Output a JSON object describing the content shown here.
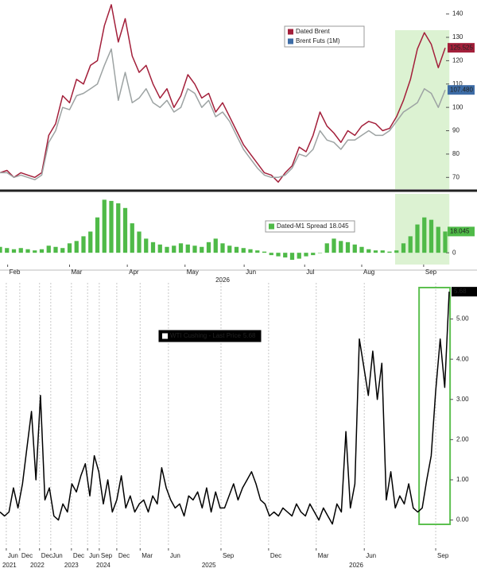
{
  "chart_data": [
    {
      "type": "line",
      "xlim": [
        0,
        64
      ],
      "ylim": [
        65,
        146
      ],
      "yticks": [
        70,
        80,
        90,
        100,
        110,
        120,
        130,
        140
      ],
      "highlight_x": [
        56.8,
        64.6
      ],
      "highlight_style": "fill",
      "highlight_color": "#dcf2d2",
      "series": [
        {
          "name": "Dated Brent",
          "color": "#a31f3a",
          "label_color": "#a31f3a",
          "last_label": "125.525",
          "values": [
            72,
            73,
            70,
            72,
            71,
            70,
            72,
            88,
            93,
            105,
            102,
            112,
            110,
            118,
            120,
            135,
            144,
            128,
            138,
            122,
            115,
            118,
            110,
            104,
            108,
            100,
            105,
            114,
            110,
            104,
            106,
            98,
            102,
            96,
            90,
            84,
            80,
            76,
            72,
            71,
            68,
            72,
            75,
            83,
            81,
            88,
            98,
            92,
            89,
            85,
            90,
            88,
            92,
            94,
            93,
            90,
            91,
            96,
            103,
            112,
            125,
            132,
            127,
            117,
            125.525
          ]
        },
        {
          "name": "Brent Futs (1M)",
          "color": "#9da3a3",
          "label_color": "#3d6ca6",
          "last_label": "107.480",
          "values": [
            72,
            72,
            70,
            71,
            70,
            69,
            71,
            85,
            90,
            100,
            99,
            105,
            106,
            108,
            110,
            118,
            125,
            103,
            115,
            102,
            104,
            108,
            102,
            100,
            103,
            98,
            100,
            108,
            106,
            100,
            103,
            96,
            98,
            94,
            88,
            82,
            78,
            74,
            71,
            70,
            70,
            71,
            74,
            80,
            79,
            82,
            90,
            86,
            85,
            82,
            86,
            86,
            88,
            90,
            88,
            88,
            90,
            94,
            98,
            100,
            102,
            108,
            106,
            100,
            107.48
          ]
        }
      ]
    },
    {
      "type": "bar",
      "xlim": [
        0,
        64
      ],
      "ylim": [
        -10,
        50
      ],
      "yticks": [
        0
      ],
      "xticks": [
        {
          "value": 1.1,
          "label": "Feb"
        },
        {
          "value": 10,
          "label": "Mar"
        },
        {
          "value": 18.3,
          "label": "Apr"
        },
        {
          "value": 26.6,
          "label": "May"
        },
        {
          "value": 35.1,
          "label": "Jun"
        },
        {
          "value": 43.8,
          "label": "Jul"
        },
        {
          "value": 52,
          "label": "Aug"
        },
        {
          "value": 60.9,
          "label": "Sep"
        }
      ],
      "x_label": "2026",
      "highlight_x": [
        56.8,
        64.6
      ],
      "highlight_style": "fill",
      "highlight_color": "#dcf2d2",
      "series": [
        {
          "name": "Dated-M1 Spread",
          "color": "#4fba48",
          "label_color": "#4fba48",
          "last_label": "18.045",
          "values": [
            5,
            4,
            3,
            4,
            3,
            2,
            3,
            6,
            5,
            4,
            8,
            10,
            14,
            18,
            30,
            45,
            44,
            42,
            38,
            25,
            18,
            12,
            9,
            7,
            5,
            6,
            8,
            7,
            6,
            5,
            9,
            12,
            8,
            6,
            5,
            4,
            3,
            2,
            1,
            -2,
            -3,
            -4,
            -6,
            -5,
            -3,
            -2,
            0,
            8,
            12,
            10,
            9,
            7,
            5,
            3,
            2,
            2,
            1,
            2,
            8,
            14,
            24,
            30,
            28,
            22,
            18.045
          ]
        }
      ]
    },
    {
      "type": "line",
      "xlim": [
        0,
        100
      ],
      "ylim": [
        -0.7,
        5.9
      ],
      "yticks": [
        {
          "value": 0,
          "label": "0.00"
        },
        {
          "value": 1,
          "label": "1.00"
        },
        {
          "value": 2,
          "label": "2.00"
        },
        {
          "value": 3,
          "label": "3.00"
        },
        {
          "value": 4,
          "label": "4.00"
        },
        {
          "value": 5,
          "label": "5.00"
        }
      ],
      "xticks": [
        {
          "value": 1.4,
          "label": "Jun"
        },
        {
          "value": 4.4,
          "label": "Dec"
        },
        {
          "value": 8.8,
          "label": "Dec"
        },
        {
          "value": 11.3,
          "label": "Jun"
        },
        {
          "value": 15.9,
          "label": "Dec"
        },
        {
          "value": 19.5,
          "label": "Jun"
        },
        {
          "value": 22.1,
          "label": "Sep"
        },
        {
          "value": 26,
          "label": "Dec"
        },
        {
          "value": 31.2,
          "label": "Mar"
        },
        {
          "value": 37.5,
          "label": "Jun"
        },
        {
          "value": 49.2,
          "label": "Sep"
        },
        {
          "value": 59.8,
          "label": "Dec"
        },
        {
          "value": 70.4,
          "label": "Mar"
        },
        {
          "value": 81.1,
          "label": "Jun"
        },
        {
          "value": 97,
          "label": "Sep"
        }
      ],
      "year_ticks": [
        {
          "value": 2.1,
          "label": "2021"
        },
        {
          "value": 8.3,
          "label": "2022"
        },
        {
          "value": 15.9,
          "label": "2023"
        },
        {
          "value": 23,
          "label": "2024"
        },
        {
          "value": 46.5,
          "label": "2025"
        },
        {
          "value": 79.3,
          "label": "2026"
        }
      ],
      "grid": true,
      "highlight_x": [
        93.3,
        100.2
      ],
      "highlight_style": "outline",
      "highlight_color": "#5cc04f",
      "series": [
        {
          "name": "WTI Cushing - Last Price",
          "color": "#000000",
          "label_color": "#000000",
          "last_label": "5.68",
          "values": [
            0.2,
            0.1,
            0.2,
            0.8,
            0.3,
            0.9,
            1.8,
            2.7,
            1.0,
            3.1,
            0.5,
            0.8,
            0.1,
            0.0,
            0.4,
            0.2,
            0.9,
            0.7,
            1.1,
            1.4,
            0.6,
            1.6,
            1.2,
            0.4,
            1.0,
            0.2,
            0.5,
            1.1,
            0.3,
            0.6,
            0.2,
            0.4,
            0.5,
            0.2,
            0.6,
            0.4,
            1.3,
            0.8,
            0.5,
            0.3,
            0.4,
            0.1,
            0.6,
            0.5,
            0.7,
            0.3,
            0.8,
            0.2,
            0.7,
            0.3,
            0.3,
            0.6,
            0.9,
            0.5,
            0.8,
            1.0,
            1.2,
            0.9,
            0.5,
            0.4,
            0.1,
            0.2,
            0.1,
            0.3,
            0.2,
            0.1,
            0.4,
            0.2,
            0.1,
            0.4,
            0.2,
            0.0,
            0.3,
            0.1,
            -0.1,
            0.4,
            0.2,
            2.2,
            0.3,
            0.9,
            4.5,
            3.8,
            3.1,
            4.2,
            3.0,
            3.9,
            0.5,
            1.2,
            0.3,
            0.6,
            0.4,
            0.9,
            0.3,
            0.2,
            0.3,
            1.0,
            1.6,
            3.2,
            4.5,
            3.3,
            5.68
          ]
        }
      ]
    }
  ]
}
